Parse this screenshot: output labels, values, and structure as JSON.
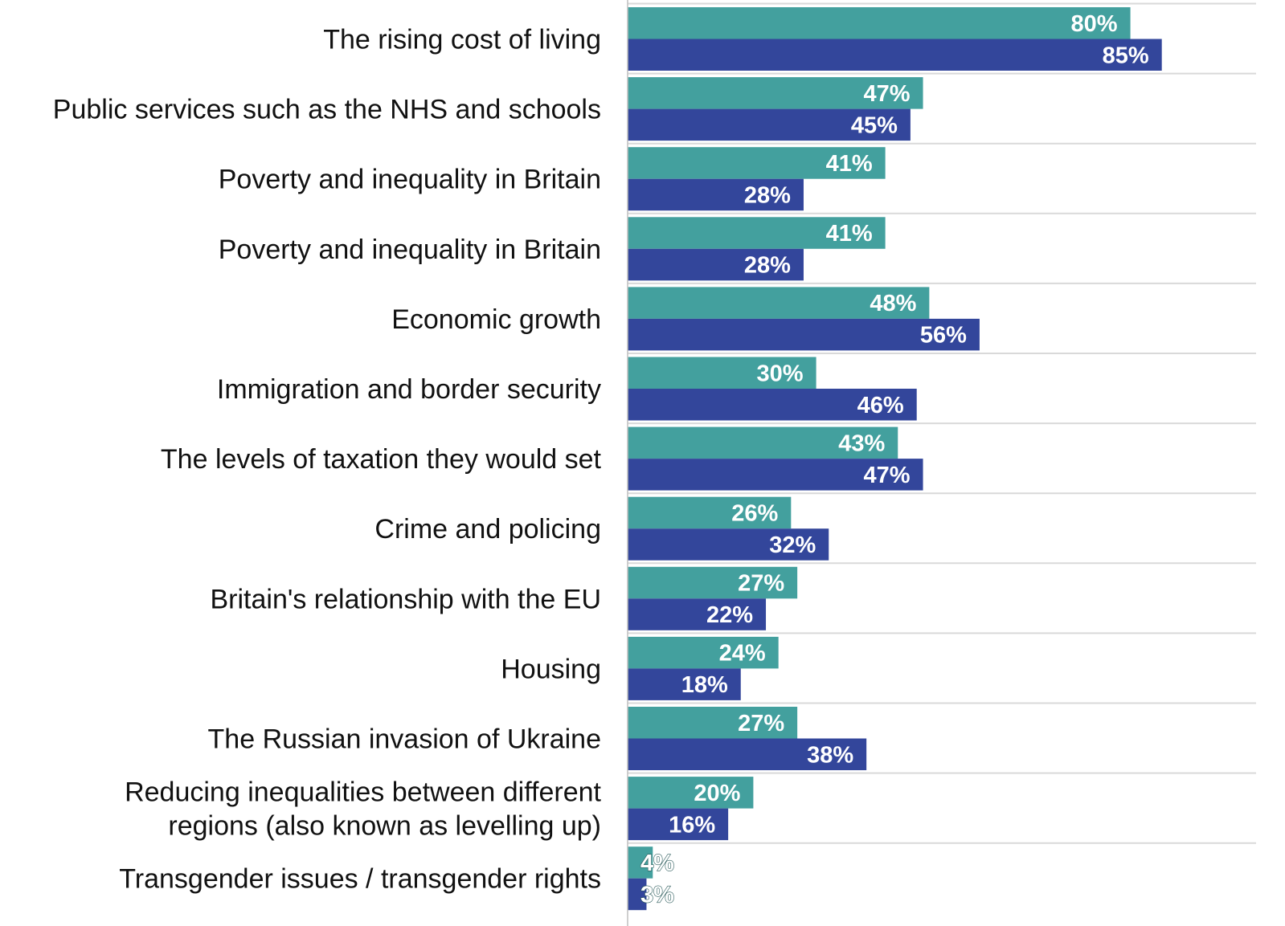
{
  "colors": {
    "series_a": "#43a09e",
    "series_b": "#33469b",
    "separator": "#d9d9d9",
    "axis": "#bfbfbf",
    "label_text": "#111111",
    "value_text": "#ffffff"
  },
  "chart_data": {
    "type": "bar",
    "orientation": "horizontal",
    "title": "",
    "xlabel": "",
    "ylabel": "",
    "xlim": [
      0,
      100
    ],
    "grid": false,
    "legend": "none",
    "value_format": "percent",
    "categories": [
      [
        "The rising cost of living"
      ],
      [
        "Public services such as the NHS and schools"
      ],
      [
        "Poverty and inequality in Britain"
      ],
      [
        "Poverty and inequality in Britain"
      ],
      [
        "Economic growth"
      ],
      [
        "Immigration and border security"
      ],
      [
        "The levels of taxation they would set"
      ],
      [
        "Crime and policing"
      ],
      [
        "Britain's relationship with the EU"
      ],
      [
        "Housing"
      ],
      [
        "The Russian invasion of Ukraine"
      ],
      [
        "Reducing inequalities between different",
        "regions (also known as levelling up)"
      ],
      [
        "Transgender issues / transgender rights"
      ]
    ],
    "series": [
      {
        "values": [
          80,
          47,
          41,
          41,
          48,
          30,
          43,
          26,
          27,
          24,
          27,
          20,
          4
        ]
      },
      {
        "values": [
          85,
          45,
          28,
          28,
          56,
          46,
          47,
          32,
          22,
          18,
          38,
          16,
          3
        ]
      }
    ]
  }
}
